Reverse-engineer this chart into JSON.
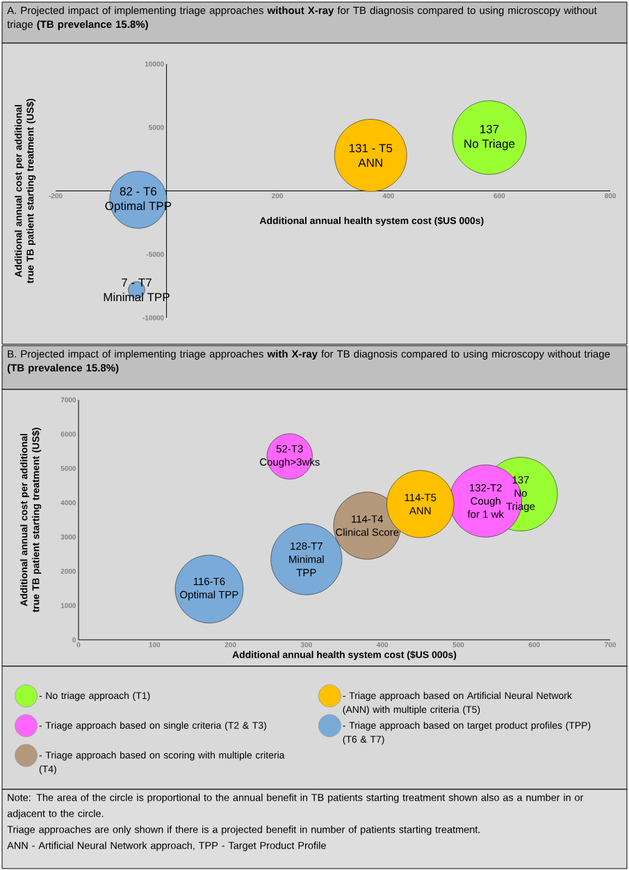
{
  "chart_data": [
    {
      "type": "bubble",
      "title": "A. Projected impact of implementing triage approaches **without X-ray** for TB diagnosis compared to using microscopy without triage **(TB prevelance 15.8%)**",
      "xlabel": "Additional annual health system cost ($US 000s)",
      "ylabel": "Additional annual cost per additional true TB patient starting treatment (US$)",
      "xlim": [
        -200,
        800
      ],
      "xticks": [
        -200,
        200,
        400,
        600,
        800
      ],
      "ylim": [
        -10000,
        10000
      ],
      "yticks": [
        -10000,
        -5000,
        5000,
        10000
      ],
      "series": [
        {
          "color": "#99ff33",
          "x": [
            582
          ],
          "values": [
            4200
          ],
          "sizes": [
            1
          ],
          "value_labels": [
            [
              "137",
              "No Triage"
            ]
          ]
        },
        {
          "color": "#ffc000",
          "x": [
            368
          ],
          "values": [
            2800
          ],
          "sizes": [
            0.96
          ],
          "value_labels": [
            [
              "131 - T5",
              "ANN"
            ]
          ]
        },
        {
          "color": "#7aaad8",
          "x": [
            -51,
            -54
          ],
          "values": [
            -700,
            -7800
          ],
          "sizes": [
            0.6,
            0.05
          ],
          "value_labels": [
            [
              "82 - T6",
              "Optimal TPP"
            ],
            [
              "7 - T7",
              "Minimal TPP"
            ]
          ]
        }
      ]
    },
    {
      "type": "bubble",
      "title": "B. Projected impact of implementing triage approaches **with X-ray** for TB diagnosis compared to using microscopy without triage **(TB prevalence 15.8%)**",
      "xlabel": "Additional annual health system cost ($US 000s)",
      "ylabel": "Additional annual cost per additional true TB patient starting treatment (US$)",
      "xlim": [
        0,
        700
      ],
      "xticks": [
        0,
        100,
        200,
        300,
        400,
        500,
        600,
        700
      ],
      "ylim": [
        0,
        7000
      ],
      "yticks": [
        0,
        1000,
        2000,
        3000,
        4000,
        5000,
        6000,
        7000
      ],
      "legend": "bottom",
      "series": [
        {
          "name": "- No triage approach (T1)",
          "color": "#99ff33",
          "x": [
            582
          ],
          "values": [
            4250
          ],
          "sizes": [
            1
          ],
          "value_labels": [
            [
              "137",
              "No",
              "Triage"
            ]
          ]
        },
        {
          "name": "- Triage approach based on single criteria (T2 & T3)",
          "color": "#ff66ff",
          "x": [
            536,
            278
          ],
          "values": [
            4050,
            5350
          ],
          "sizes": [
            0.96,
            0.38
          ],
          "value_labels": [
            [
              "132-T2",
              "Cough",
              "for 1 wk"
            ],
            [
              "52-T3",
              "Cough>3wks"
            ]
          ]
        },
        {
          "name": "- Triage approach based on scoring with multiple criteria (T4)",
          "color": "#b5997c",
          "x": [
            380
          ],
          "values": [
            3330
          ],
          "sizes": [
            0.83
          ],
          "value_labels": [
            [
              "114-T4",
              "Clinical Score"
            ]
          ]
        },
        {
          "name": "- Triage approach based on Artificial Neural Network (ANN) with multiple criteria (T5)",
          "color": "#ffc000",
          "x": [
            450
          ],
          "values": [
            3960
          ],
          "sizes": [
            0.83
          ],
          "value_labels": [
            [
              "114-T5",
              "ANN"
            ]
          ]
        },
        {
          "name": "- Triage approach based on target product profiles (TPP) (T6 & T7)",
          "color": "#7aaad8",
          "x": [
            300,
            172
          ],
          "values": [
            2350,
            1480
          ],
          "sizes": [
            0.93,
            0.85
          ],
          "value_labels": [
            [
              "128-T7",
              "Minimal",
              "TPP"
            ],
            [
              "116-T6",
              "Optimal TPP"
            ]
          ]
        }
      ],
      "annotations": [
        "Note: The area of the circle is proportional to the annual benefit in TB patients starting treatment shown also as a number in or adjacent to the circle.",
        "Triage approaches are only shown if there is a projected benefit in number of patients starting treatment.",
        "ANN - Artificial Neural Network approach, TPP - Target Product Profile"
      ]
    }
  ]
}
